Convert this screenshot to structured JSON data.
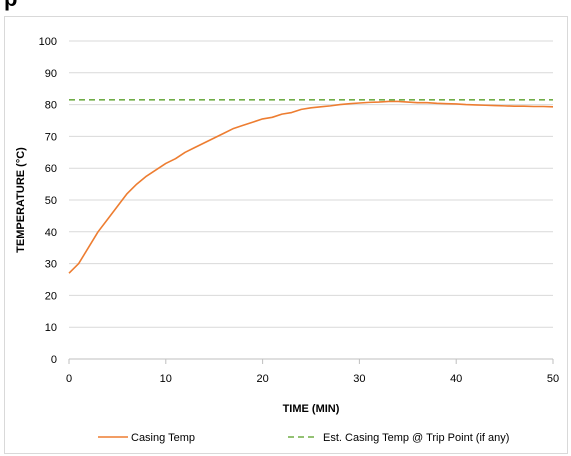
{
  "page": {
    "header_fragment": "p"
  },
  "chart_data": {
    "type": "line",
    "title": "",
    "xlabel": "TIME (MIN)",
    "ylabel": "TEMPERATURE (°C)",
    "xlim": [
      0,
      50
    ],
    "ylim": [
      0,
      100
    ],
    "x_ticks": [
      0,
      10,
      20,
      30,
      40,
      50
    ],
    "y_ticks": [
      0,
      10,
      20,
      30,
      40,
      50,
      60,
      70,
      80,
      90,
      100
    ],
    "grid": "horizontal",
    "legend_position": "bottom",
    "series": [
      {
        "name": "Casing Temp",
        "color": "#ED7D31",
        "style": "solid",
        "x": [
          0,
          1,
          2,
          3,
          4,
          5,
          6,
          7,
          8,
          9,
          10,
          11,
          12,
          13,
          14,
          15,
          16,
          17,
          18,
          19,
          20,
          21,
          22,
          23,
          24,
          25,
          26,
          27,
          28,
          29,
          30,
          31,
          32,
          33,
          34,
          35,
          36,
          37,
          38,
          39,
          40,
          41,
          42,
          43,
          44,
          45,
          46,
          47,
          48,
          49,
          50
        ],
        "values": [
          27,
          30,
          35,
          40,
          44,
          48,
          52,
          55,
          57.5,
          59.5,
          61.5,
          63,
          65,
          66.5,
          68,
          69.5,
          71,
          72.5,
          73.5,
          74.5,
          75.5,
          76,
          77,
          77.5,
          78.5,
          79,
          79.3,
          79.6,
          80,
          80.3,
          80.5,
          80.7,
          80.8,
          81,
          81,
          80.8,
          80.6,
          80.6,
          80.4,
          80.3,
          80.2,
          80,
          79.9,
          79.8,
          79.7,
          79.6,
          79.5,
          79.5,
          79.4,
          79.4,
          79.3
        ]
      },
      {
        "name": "Est. Casing Temp @ Trip Point (if any)",
        "color": "#70AD47",
        "style": "dashed",
        "x": [
          0,
          50
        ],
        "values": [
          81.5,
          81.5
        ]
      }
    ]
  }
}
